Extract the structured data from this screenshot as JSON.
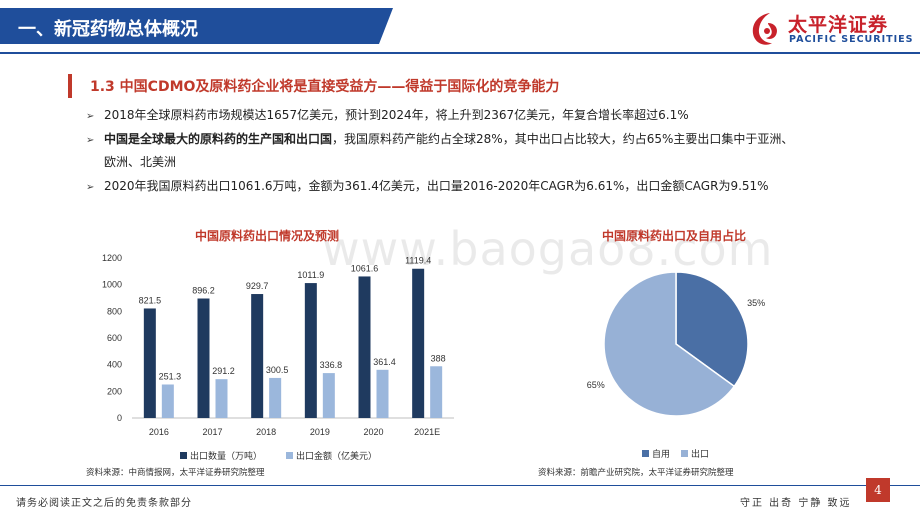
{
  "header": {
    "title": "一、新冠药物总体概况"
  },
  "logo": {
    "cn": "太平洋证券",
    "en": "PACIFIC SECURITIES"
  },
  "section": {
    "title": "1.3 中国CDMO及原料药企业将是直接受益方——得益于国际化的竞争能力"
  },
  "bullets": [
    {
      "text": "2018年全球原料药市场规模达1657亿美元，预计到2024年，将上升到2367亿美元，年复合增长率超过6.1%"
    },
    {
      "bold": "中国是全球最大的原料药的生产国和出口国",
      "text": "，我国原料药产能约占全球28%，其中出口占比较大，约占65%主要出口集中于亚洲、",
      "cont": "欧洲、北美洲"
    },
    {
      "text": "2020年我国原料药出口1061.6万吨，金额为361.4亿美元，出口量2016-2020年CAGR为6.61%，出口金额CAGR为9.51%"
    }
  ],
  "watermark": "www.baogao8.com",
  "chart_data": [
    {
      "type": "bar",
      "title": "中国原料药出口情况及预测",
      "categories": [
        "2016",
        "2017",
        "2018",
        "2019",
        "2020",
        "2021E"
      ],
      "series": [
        {
          "name": "出口数量（万吨）",
          "values": [
            821.5,
            896.2,
            929.7,
            1011.9,
            1061.6,
            1119.4
          ],
          "color": "#1f3a5f"
        },
        {
          "name": "出口金额（亿美元）",
          "values": [
            251.3,
            291.2,
            300.5,
            336.8,
            361.4,
            388
          ],
          "color": "#9bb7dc"
        }
      ],
      "yticks": [
        "0",
        "200",
        "400",
        "600",
        "800",
        "1000",
        "1200"
      ],
      "ylim": [
        0,
        1200
      ],
      "grid": false,
      "legend": "bottom"
    },
    {
      "type": "pie",
      "title": "中国原料药出口及自用占比",
      "slices": [
        {
          "name": "自用",
          "value": 35,
          "label": "35%",
          "color": "#4a6fa5"
        },
        {
          "name": "出口",
          "value": 65,
          "label": "65%",
          "color": "#97b1d6"
        }
      ],
      "legend": "bottom"
    }
  ],
  "sources": {
    "left": "资料来源：中商情报网，太平洋证券研究院整理",
    "right": "资料来源：前瞻产业研究院，太平洋证券研究院整理"
  },
  "footer": {
    "left": "请务必阅读正文之后的免责条款部分",
    "right": "守正  出奇  宁静  致远",
    "page": "4"
  }
}
